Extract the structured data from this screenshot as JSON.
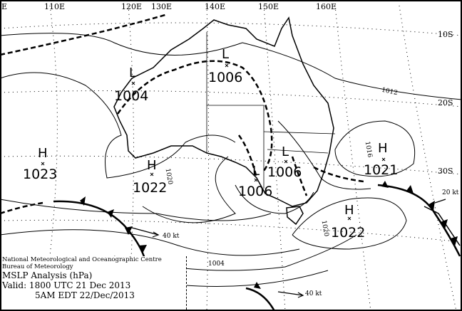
{
  "map": {
    "title": "MSLP Analysis (hPa)",
    "organisation": "National Meteorological and Oceanographic Centre",
    "agency": "Bureau of Meteorology",
    "valid_utc": "Valid: 1800 UTC 21 Dec 2013",
    "valid_local": "5AM EDT 22/Dec/2013",
    "longitudes": [
      "E",
      "110E",
      "120E",
      "130E",
      "140E",
      "150E",
      "160E"
    ],
    "latitudes": [
      "10S",
      "20S",
      "30S"
    ],
    "pressure_systems": [
      {
        "type": "L",
        "value": "1004"
      },
      {
        "type": "L",
        "value": "1006"
      },
      {
        "type": "H",
        "value": "1023"
      },
      {
        "type": "H",
        "value": "1022"
      },
      {
        "type": "L",
        "value": "1006"
      },
      {
        "type": "L",
        "value": "1006"
      },
      {
        "type": "H",
        "value": "1021"
      },
      {
        "type": "H",
        "value": "1022"
      }
    ],
    "isobar_labels": [
      "1012",
      "1020",
      "1004",
      "1020",
      "1016"
    ],
    "wind_labels": [
      "40 kt",
      "40 kt",
      "20 kt"
    ]
  }
}
